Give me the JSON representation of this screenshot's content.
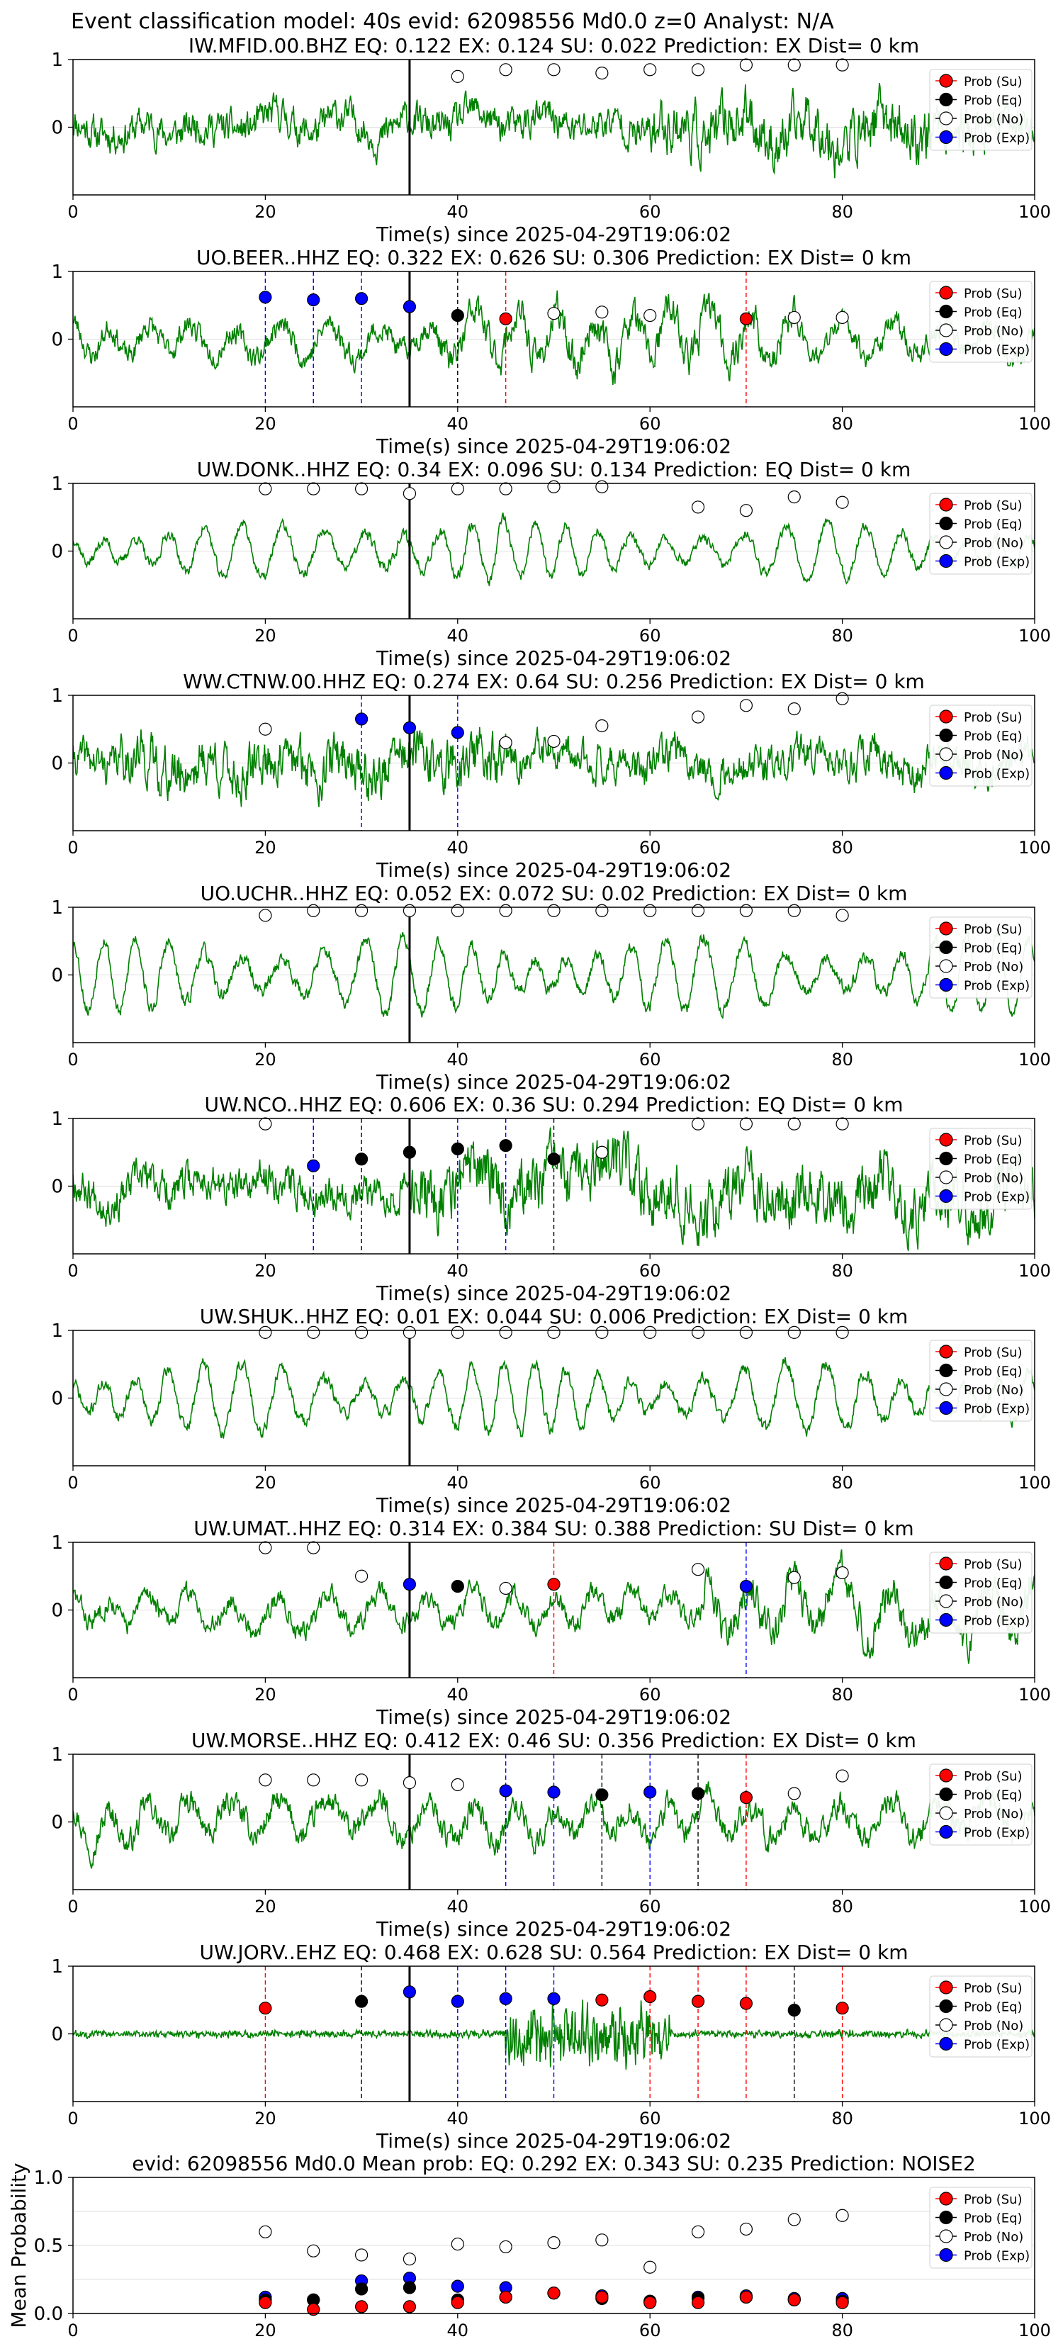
{
  "figure": {
    "suptitle": "Event classification model: 40s evid: 62098556 Md0.0 z=0 Analyst: N/A"
  },
  "legend_labels": [
    "Prob (Su)",
    "Prob (Eq)",
    "Prob (No)",
    "Prob (Exp)"
  ],
  "colors": {
    "waveform": "#008000",
    "su": "#ff0000",
    "eq": "#000000",
    "no": "#ffffff",
    "exp": "#0000ff",
    "pick_line": "#000000",
    "grid": "#dddddd"
  },
  "chart_data": [
    {
      "type": "line",
      "title": "IW.MFID.00.BHZ   EQ: 0.122  EX: 0.124  SU: 0.022   Prediction: EX    Dist= 0 km",
      "xlabel": "Time(s) since 2025-04-29T19:06:02",
      "xlim": [
        0,
        100
      ],
      "ylim": [
        -1,
        1
      ],
      "xticks": [
        "0",
        "20",
        "40",
        "60",
        "80",
        "100"
      ],
      "yticks": [
        "1",
        "0"
      ],
      "pick_time": 35,
      "waveform": {
        "style": "broadband",
        "seed": 11,
        "amp": 0.42,
        "burst_start": 60,
        "burst_end": 95,
        "burst_gain": 1.6
      },
      "probability_series": [
        {
          "class": "no",
          "x": [
            40,
            45,
            50,
            55,
            60,
            65,
            70,
            75,
            80
          ],
          "y": [
            0.75,
            0.85,
            0.85,
            0.8,
            0.85,
            0.85,
            0.92,
            0.92,
            0.92
          ]
        }
      ],
      "vlines": []
    },
    {
      "type": "line",
      "title": "UO.BEER..HHZ   EQ: 0.322  EX: 0.626  SU: 0.306   Prediction: EX    Dist= 0 km",
      "xlabel": "Time(s) since 2025-04-29T19:06:02",
      "xlim": [
        0,
        100
      ],
      "ylim": [
        -1,
        1
      ],
      "xticks": [
        "0",
        "20",
        "40",
        "60",
        "80",
        "100"
      ],
      "yticks": [
        "1",
        "0"
      ],
      "pick_time": 35,
      "waveform": {
        "style": "mixed",
        "seed": 23,
        "amp": 0.5,
        "burst_start": 38,
        "burst_end": 75,
        "burst_gain": 1.5
      },
      "probability_series": [
        {
          "class": "exp",
          "x": [
            20,
            25,
            30,
            35
          ],
          "y": [
            0.62,
            0.58,
            0.6,
            0.48
          ]
        },
        {
          "class": "eq",
          "x": [
            40
          ],
          "y": [
            0.35
          ]
        },
        {
          "class": "su",
          "x": [
            45,
            70
          ],
          "y": [
            0.3,
            0.3
          ]
        },
        {
          "class": "no",
          "x": [
            50,
            55,
            60,
            75,
            80
          ],
          "y": [
            0.38,
            0.4,
            0.35,
            0.32,
            0.32
          ]
        }
      ],
      "vlines": [
        {
          "x": 20,
          "class": "exp"
        },
        {
          "x": 25,
          "class": "exp"
        },
        {
          "x": 30,
          "class": "exp"
        },
        {
          "x": 40,
          "class": "eq"
        },
        {
          "x": 45,
          "class": "su"
        },
        {
          "x": 70,
          "class": "su"
        }
      ]
    },
    {
      "type": "line",
      "title": "UW.DONK..HHZ   EQ: 0.34  EX: 0.096  SU: 0.134   Prediction: EQ    Dist= 0 km",
      "xlabel": "Time(s) since 2025-04-29T19:06:02",
      "xlim": [
        0,
        100
      ],
      "ylim": [
        -1,
        1
      ],
      "xticks": [
        "0",
        "20",
        "40",
        "60",
        "80",
        "100"
      ],
      "yticks": [
        "1",
        "0"
      ],
      "pick_time": 35,
      "waveform": {
        "style": "oscillating",
        "seed": 37,
        "amp": 0.55,
        "burst_start": 30,
        "burst_end": 45,
        "burst_gain": 1.3
      },
      "probability_series": [
        {
          "class": "no",
          "x": [
            20,
            25,
            30,
            35,
            40,
            45,
            50,
            55,
            65,
            70,
            75,
            80
          ],
          "y": [
            0.92,
            0.92,
            0.92,
            0.85,
            0.92,
            0.92,
            0.95,
            0.95,
            0.65,
            0.6,
            0.8,
            0.72
          ]
        }
      ],
      "vlines": []
    },
    {
      "type": "line",
      "title": "WW.CTNW.00.HHZ   EQ: 0.274  EX: 0.64  SU: 0.256   Prediction: EX    Dist= 0 km",
      "xlabel": "Time(s) since 2025-04-29T19:06:02",
      "xlim": [
        0,
        100
      ],
      "ylim": [
        -1,
        1
      ],
      "xticks": [
        "0",
        "20",
        "40",
        "60",
        "80",
        "100"
      ],
      "yticks": [
        "1",
        "0"
      ],
      "pick_time": 35,
      "waveform": {
        "style": "broadband",
        "seed": 41,
        "amp": 0.45,
        "burst_start": 5,
        "burst_end": 45,
        "burst_gain": 1.4
      },
      "probability_series": [
        {
          "class": "no",
          "x": [
            20,
            45,
            50,
            55,
            65,
            70,
            75,
            80
          ],
          "y": [
            0.5,
            0.3,
            0.32,
            0.55,
            0.68,
            0.85,
            0.8,
            0.95
          ]
        },
        {
          "class": "exp",
          "x": [
            30,
            35,
            40
          ],
          "y": [
            0.65,
            0.52,
            0.45
          ]
        }
      ],
      "vlines": [
        {
          "x": 30,
          "class": "exp"
        },
        {
          "x": 40,
          "class": "exp"
        }
      ]
    },
    {
      "type": "line",
      "title": "UO.UCHR..HHZ   EQ: 0.052  EX: 0.072  SU: 0.02   Prediction: EX    Dist= 0 km",
      "xlabel": "Time(s) since 2025-04-29T19:06:02",
      "xlim": [
        0,
        100
      ],
      "ylim": [
        -1,
        1
      ],
      "xticks": [
        "0",
        "20",
        "40",
        "60",
        "80",
        "100"
      ],
      "yticks": [
        "1",
        "0"
      ],
      "pick_time": 35,
      "waveform": {
        "style": "oscillating",
        "seed": 53,
        "amp": 0.75,
        "burst_start": 0,
        "burst_end": 0,
        "burst_gain": 1.0
      },
      "probability_series": [
        {
          "class": "no",
          "x": [
            20,
            25,
            30,
            35,
            40,
            45,
            50,
            55,
            60,
            65,
            70,
            75,
            80
          ],
          "y": [
            0.88,
            0.95,
            0.95,
            0.95,
            0.95,
            0.95,
            0.95,
            0.95,
            0.95,
            0.95,
            0.95,
            0.95,
            0.88
          ]
        }
      ],
      "vlines": []
    },
    {
      "type": "line",
      "title": "UW.NCO..HHZ   EQ: 0.606  EX: 0.36  SU: 0.294   Prediction: EQ    Dist= 0 km",
      "xlabel": "Time(s) since 2025-04-29T19:06:02",
      "xlim": [
        0,
        100
      ],
      "ylim": [
        -1,
        1
      ],
      "xticks": [
        "0",
        "20",
        "40",
        "60",
        "80",
        "100"
      ],
      "yticks": [
        "1",
        "0"
      ],
      "pick_time": 35,
      "waveform": {
        "style": "broadband",
        "seed": 67,
        "amp": 0.45,
        "burst_start": 35,
        "burst_end": 100,
        "burst_gain": 1.6
      },
      "probability_series": [
        {
          "class": "no",
          "x": [
            20,
            55,
            65,
            70,
            75,
            80
          ],
          "y": [
            0.92,
            0.5,
            0.92,
            0.92,
            0.92,
            0.92
          ]
        },
        {
          "class": "exp",
          "x": [
            25
          ],
          "y": [
            0.3
          ]
        },
        {
          "class": "eq",
          "x": [
            30,
            35,
            40,
            45,
            50
          ],
          "y": [
            0.4,
            0.5,
            0.55,
            0.6,
            0.4
          ]
        }
      ],
      "vlines": [
        {
          "x": 25,
          "class": "exp"
        },
        {
          "x": 30,
          "class": "eq"
        },
        {
          "x": 40,
          "class": "exp"
        },
        {
          "x": 45,
          "class": "exp"
        },
        {
          "x": 50,
          "class": "eq"
        }
      ]
    },
    {
      "type": "line",
      "title": "UW.SHUK..HHZ   EQ: 0.01  EX: 0.044  SU: 0.006   Prediction: EX    Dist= 0 km",
      "xlabel": "Time(s) since 2025-04-29T19:06:02",
      "xlim": [
        0,
        100
      ],
      "ylim": [
        -1,
        1
      ],
      "xticks": [
        "0",
        "20",
        "40",
        "60",
        "80",
        "100"
      ],
      "yticks": [
        "1",
        "0"
      ],
      "pick_time": 35,
      "waveform": {
        "style": "oscillating",
        "seed": 71,
        "amp": 0.7,
        "burst_start": 0,
        "burst_end": 0,
        "burst_gain": 1.0
      },
      "probability_series": [
        {
          "class": "no",
          "x": [
            20,
            25,
            30,
            35,
            40,
            45,
            50,
            55,
            60,
            65,
            70,
            75,
            80
          ],
          "y": [
            0.97,
            0.97,
            0.97,
            0.97,
            0.97,
            0.97,
            0.97,
            0.97,
            0.97,
            0.97,
            0.97,
            0.97,
            0.97
          ]
        }
      ],
      "vlines": []
    },
    {
      "type": "line",
      "title": "UW.UMAT..HHZ   EQ: 0.314  EX: 0.384  SU: 0.388   Prediction: SU    Dist= 0 km",
      "xlabel": "Time(s) since 2025-04-29T19:06:02",
      "xlim": [
        0,
        100
      ],
      "ylim": [
        -1,
        1
      ],
      "xticks": [
        "0",
        "20",
        "40",
        "60",
        "80",
        "100"
      ],
      "yticks": [
        "1",
        "0"
      ],
      "pick_time": 35,
      "waveform": {
        "style": "mixed",
        "seed": 83,
        "amp": 0.45,
        "burst_start": 65,
        "burst_end": 100,
        "burst_gain": 1.8
      },
      "probability_series": [
        {
          "class": "no",
          "x": [
            20,
            25,
            30,
            45,
            65,
            75,
            80
          ],
          "y": [
            0.92,
            0.92,
            0.5,
            0.32,
            0.6,
            0.48,
            0.55
          ]
        },
        {
          "class": "exp",
          "x": [
            35,
            70
          ],
          "y": [
            0.38,
            0.35
          ]
        },
        {
          "class": "eq",
          "x": [
            40
          ],
          "y": [
            0.35
          ]
        },
        {
          "class": "su",
          "x": [
            50
          ],
          "y": [
            0.38
          ]
        }
      ],
      "vlines": [
        {
          "x": 50,
          "class": "su"
        },
        {
          "x": 70,
          "class": "exp"
        }
      ]
    },
    {
      "type": "line",
      "title": "UW.MORSE..HHZ   EQ: 0.412  EX: 0.46  SU: 0.356   Prediction: EX    Dist= 0 km",
      "xlabel": "Time(s) since 2025-04-29T19:06:02",
      "xlim": [
        0,
        100
      ],
      "ylim": [
        -1,
        1
      ],
      "xticks": [
        "0",
        "20",
        "40",
        "60",
        "80",
        "100"
      ],
      "yticks": [
        "1",
        "0"
      ],
      "pick_time": 35,
      "waveform": {
        "style": "mixed",
        "seed": 97,
        "amp": 0.55,
        "burst_start": 0,
        "burst_end": 0,
        "burst_gain": 1.0
      },
      "probability_series": [
        {
          "class": "no",
          "x": [
            20,
            25,
            30,
            35,
            40,
            75,
            80
          ],
          "y": [
            0.62,
            0.62,
            0.62,
            0.58,
            0.55,
            0.42,
            0.68
          ]
        },
        {
          "class": "exp",
          "x": [
            45,
            50,
            60
          ],
          "y": [
            0.46,
            0.44,
            0.44
          ]
        },
        {
          "class": "eq",
          "x": [
            55,
            65
          ],
          "y": [
            0.4,
            0.42
          ]
        },
        {
          "class": "su",
          "x": [
            70
          ],
          "y": [
            0.36
          ]
        }
      ],
      "vlines": [
        {
          "x": 45,
          "class": "exp"
        },
        {
          "x": 50,
          "class": "exp"
        },
        {
          "x": 55,
          "class": "eq"
        },
        {
          "x": 60,
          "class": "exp"
        },
        {
          "x": 65,
          "class": "eq"
        },
        {
          "x": 70,
          "class": "su"
        }
      ]
    },
    {
      "type": "line",
      "title": "UW.JORV..EHZ   EQ: 0.468  EX: 0.628  SU: 0.564   Prediction: EX    Dist= 0 km",
      "xlabel": "Time(s) since 2025-04-29T19:06:02",
      "xlim": [
        0,
        100
      ],
      "ylim": [
        -1,
        1
      ],
      "xticks": [
        "0",
        "20",
        "40",
        "60",
        "80",
        "100"
      ],
      "yticks": [
        "1",
        "0"
      ],
      "pick_time": 35,
      "waveform": {
        "style": "quiet",
        "seed": 101,
        "amp": 0.1,
        "burst_start": 45,
        "burst_end": 62,
        "burst_gain": 8.0
      },
      "probability_series": [
        {
          "class": "su",
          "x": [
            20,
            55,
            60,
            65,
            70,
            80
          ],
          "y": [
            0.38,
            0.5,
            0.55,
            0.48,
            0.45,
            0.38
          ]
        },
        {
          "class": "eq",
          "x": [
            30,
            75
          ],
          "y": [
            0.48,
            0.35
          ]
        },
        {
          "class": "exp",
          "x": [
            35,
            40,
            45,
            50
          ],
          "y": [
            0.62,
            0.48,
            0.52,
            0.52
          ]
        }
      ],
      "vlines": [
        {
          "x": 20,
          "class": "su"
        },
        {
          "x": 30,
          "class": "eq"
        },
        {
          "x": 40,
          "class": "exp"
        },
        {
          "x": 45,
          "class": "exp"
        },
        {
          "x": 50,
          "class": "exp"
        },
        {
          "x": 60,
          "class": "su"
        },
        {
          "x": 65,
          "class": "su"
        },
        {
          "x": 70,
          "class": "su"
        },
        {
          "x": 75,
          "class": "eq"
        },
        {
          "x": 80,
          "class": "su"
        }
      ]
    },
    {
      "type": "scatter",
      "title": "evid: 62098556  Md0.0   Mean prob:   EQ: 0.292  EX: 0.343  SU: 0.235   Prediction: NOISE2",
      "xlabel": "",
      "ylabel": "Mean Probability",
      "xlim": [
        0,
        100
      ],
      "ylim": [
        0,
        1
      ],
      "xticks": [
        "0",
        "20",
        "40",
        "60",
        "80",
        "100"
      ],
      "yticks": [
        "1.0",
        "0.5",
        "0.0"
      ],
      "x": [
        20,
        25,
        30,
        35,
        40,
        45,
        50,
        55,
        60,
        65,
        70,
        75,
        80
      ],
      "series": [
        {
          "class": "no",
          "values": [
            0.6,
            0.46,
            0.43,
            0.4,
            0.51,
            0.49,
            0.52,
            0.54,
            0.34,
            0.6,
            0.62,
            0.69,
            0.72
          ]
        },
        {
          "class": "exp",
          "values": [
            0.12,
            0.1,
            0.24,
            0.26,
            0.2,
            0.19,
            0.15,
            0.13,
            0.09,
            0.12,
            0.13,
            0.11,
            0.11
          ]
        },
        {
          "class": "eq",
          "values": [
            0.1,
            0.1,
            0.18,
            0.19,
            0.1,
            0.12,
            0.15,
            0.11,
            0.09,
            0.11,
            0.12,
            0.1,
            0.09
          ]
        },
        {
          "class": "su",
          "values": [
            0.08,
            0.03,
            0.05,
            0.05,
            0.08,
            0.12,
            0.15,
            0.12,
            0.08,
            0.08,
            0.12,
            0.1,
            0.08
          ]
        }
      ]
    }
  ]
}
